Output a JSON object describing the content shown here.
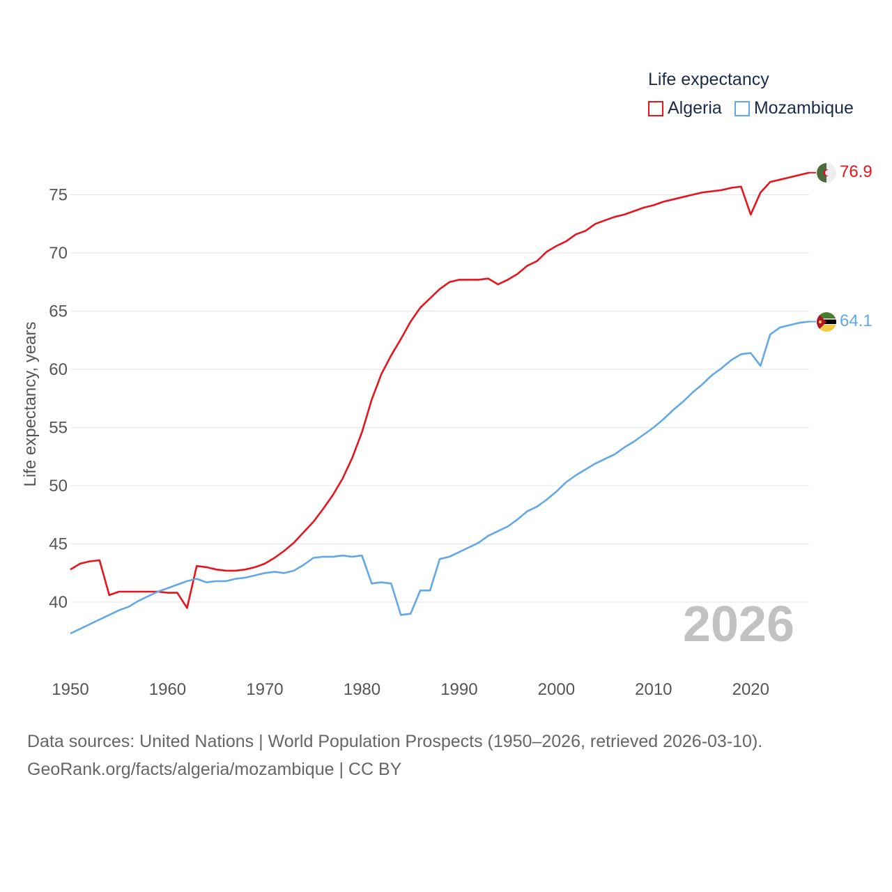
{
  "legend": {
    "title": "Life expectancy"
  },
  "footer": {
    "line1": "Data sources: United Nations | World Population Prospects (1950–2026, retrieved 2026-03-10).",
    "line2": "GeoRank.org/facts/algeria/mozambique | CC BY"
  },
  "chart_data": {
    "type": "line",
    "title": "Life expectancy",
    "xlabel": "",
    "ylabel": "Life expectancy, years",
    "xlim": [
      1950,
      2026
    ],
    "ylim": [
      35,
      78
    ],
    "x_ticks": [
      1950,
      1960,
      1970,
      1980,
      1990,
      2000,
      2010,
      2020
    ],
    "y_ticks": [
      40,
      45,
      50,
      55,
      60,
      65,
      70,
      75
    ],
    "grid": "horizontal",
    "legend_position": "top-right",
    "year_watermark": "2026",
    "x": [
      1950,
      1951,
      1952,
      1953,
      1954,
      1955,
      1956,
      1957,
      1958,
      1959,
      1960,
      1961,
      1962,
      1963,
      1964,
      1965,
      1966,
      1967,
      1968,
      1969,
      1970,
      1971,
      1972,
      1973,
      1974,
      1975,
      1976,
      1977,
      1978,
      1979,
      1980,
      1981,
      1982,
      1983,
      1984,
      1985,
      1986,
      1987,
      1988,
      1989,
      1990,
      1991,
      1992,
      1993,
      1994,
      1995,
      1996,
      1997,
      1998,
      1999,
      2000,
      2001,
      2002,
      2003,
      2004,
      2005,
      2006,
      2007,
      2008,
      2009,
      2010,
      2011,
      2012,
      2013,
      2014,
      2015,
      2016,
      2017,
      2018,
      2019,
      2020,
      2021,
      2022,
      2023,
      2024,
      2025,
      2026
    ],
    "series": [
      {
        "name": "Algeria",
        "color": "#e8141b",
        "end_label": "76.9",
        "flag": "algeria-flag",
        "values": [
          42.8,
          43.3,
          43.5,
          43.6,
          40.6,
          40.9,
          40.9,
          40.9,
          40.9,
          40.9,
          40.8,
          40.8,
          39.5,
          43.1,
          43.0,
          42.8,
          42.7,
          42.7,
          42.8,
          43.0,
          43.3,
          43.8,
          44.4,
          45.1,
          46.0,
          46.9,
          48.0,
          49.2,
          50.6,
          52.4,
          54.6,
          57.4,
          59.6,
          61.2,
          62.6,
          64.1,
          65.3,
          66.1,
          66.9,
          67.5,
          67.7,
          67.7,
          67.7,
          67.8,
          67.3,
          67.7,
          68.2,
          68.9,
          69.3,
          70.1,
          70.6,
          71.0,
          71.6,
          71.9,
          72.5,
          72.8,
          73.1,
          73.3,
          73.6,
          73.9,
          74.1,
          74.4,
          74.6,
          74.8,
          75.0,
          75.2,
          75.3,
          75.4,
          75.6,
          75.7,
          73.3,
          75.2,
          76.1,
          76.3,
          76.5,
          76.7,
          76.9
        ]
      },
      {
        "name": "Mozambique",
        "color": "#62a8e6",
        "end_label": "64.1",
        "flag": "mozambique-flag",
        "values": [
          37.3,
          37.7,
          38.1,
          38.5,
          38.9,
          39.3,
          39.6,
          40.1,
          40.5,
          40.9,
          41.2,
          41.5,
          41.8,
          42.0,
          41.7,
          41.8,
          41.8,
          42.0,
          42.1,
          42.3,
          42.5,
          42.6,
          42.5,
          42.7,
          43.2,
          43.8,
          43.9,
          43.9,
          44.0,
          43.9,
          44.0,
          41.6,
          41.7,
          41.6,
          38.9,
          39.0,
          41.0,
          41.0,
          43.7,
          43.9,
          44.3,
          44.7,
          45.1,
          45.7,
          46.1,
          46.5,
          47.1,
          47.8,
          48.2,
          48.8,
          49.5,
          50.3,
          50.9,
          51.4,
          51.9,
          52.3,
          52.7,
          53.3,
          53.8,
          54.4,
          55.0,
          55.7,
          56.5,
          57.2,
          58.0,
          58.7,
          59.5,
          60.1,
          60.8,
          61.3,
          61.4,
          60.3,
          63.0,
          63.6,
          63.8,
          64.0,
          64.1
        ]
      }
    ]
  }
}
